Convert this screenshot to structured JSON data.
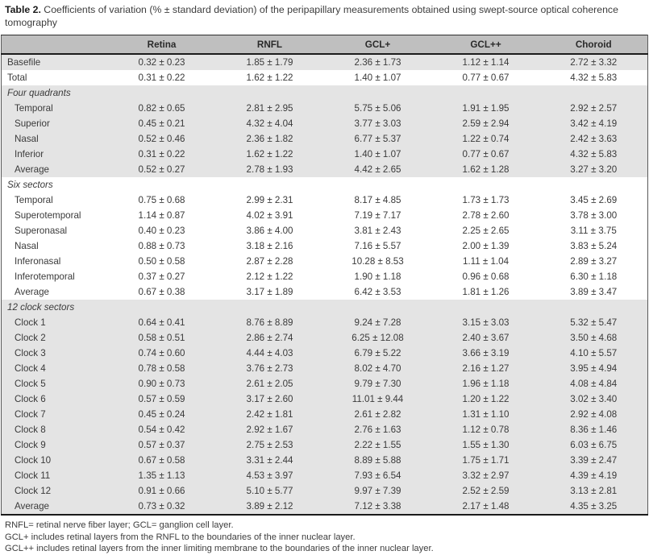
{
  "title": {
    "label": "Table 2.",
    "text": " Coefficients of variation (% ± standard deviation) of the peripapillary measurements obtained using swept-source optical coherence tomography"
  },
  "table": {
    "columns": [
      "",
      "Retina",
      "RNFL",
      "GCL+",
      "GCL++",
      "Choroid"
    ],
    "groups": [
      {
        "header": null,
        "rows": [
          {
            "label": "Basefile",
            "values": [
              "0.32 ± 0.23",
              "1.85 ± 1.79",
              "2.36 ± 1.73",
              "1.12 ± 1.14",
              "2.72 ± 3.32"
            ]
          }
        ]
      },
      {
        "header": null,
        "rows": [
          {
            "label": "Total",
            "values": [
              "0.31 ± 0.22",
              "1.62 ± 1.22",
              "1.40 ± 1.07",
              "0.77 ± 0.67",
              "4.32 ± 5.83"
            ]
          }
        ]
      },
      {
        "header": "Four quadrants",
        "rows": [
          {
            "label": "Temporal",
            "values": [
              "0.82 ± 0.65",
              "2.81 ± 2.95",
              "5.75 ± 5.06",
              "1.91 ± 1.95",
              "2.92 ± 2.57"
            ]
          },
          {
            "label": "Superior",
            "values": [
              "0.45 ± 0.21",
              "4.32 ± 4.04",
              "3.77 ± 3.03",
              "2.59 ± 2.94",
              "3.42 ± 4.19"
            ]
          },
          {
            "label": "Nasal",
            "values": [
              "0.52 ± 0.46",
              "2.36 ± 1.82",
              "6.77 ± 5.37",
              "1.22 ± 0.74",
              "2.42 ± 3.63"
            ]
          },
          {
            "label": "Inferior",
            "values": [
              "0.31 ± 0.22",
              "1.62 ± 1.22",
              "1.40 ± 1.07",
              "0.77 ± 0.67",
              "4.32 ± 5.83"
            ]
          },
          {
            "label": "Average",
            "values": [
              "0.52 ± 0.27",
              "2.78 ± 1.93",
              "4.42 ± 2.65",
              "1.62 ± 1.28",
              "3.27 ± 3.20"
            ]
          }
        ]
      },
      {
        "header": "Six sectors",
        "rows": [
          {
            "label": "Temporal",
            "values": [
              "0.75 ± 0.68",
              "2.99 ± 2.31",
              "8.17 ± 4.85",
              "1.73 ± 1.73",
              "3.45 ± 2.69"
            ]
          },
          {
            "label": "Superotemporal",
            "values": [
              "1.14 ± 0.87",
              "4.02 ± 3.91",
              "7.19 ± 7.17",
              "2.78 ± 2.60",
              "3.78 ± 3.00"
            ]
          },
          {
            "label": "Superonasal",
            "values": [
              "0.40 ± 0.23",
              "3.86 ± 4.00",
              "3.81 ± 2.43",
              "2.25 ± 2.65",
              "3.11 ± 3.75"
            ]
          },
          {
            "label": "Nasal",
            "values": [
              "0.88 ± 0.73",
              "3.18 ± 2.16",
              "7.16 ± 5.57",
              "2.00 ± 1.39",
              "3.83 ± 5.24"
            ]
          },
          {
            "label": "Inferonasal",
            "values": [
              "0.50 ± 0.58",
              "2.87 ± 2.28",
              "10.28 ± 8.53",
              "1.11 ± 1.04",
              "2.89 ± 3.27"
            ]
          },
          {
            "label": "Inferotemporal",
            "values": [
              "0.37 ± 0.27",
              "2.12 ± 1.22",
              "1.90 ± 1.18",
              "0.96 ± 0.68",
              "6.30 ± 1.18"
            ]
          },
          {
            "label": "Average",
            "values": [
              "0.67 ± 0.38",
              "3.17 ± 1.89",
              "6.42 ± 3.53",
              "1.81 ± 1.26",
              "3.89 ± 3.47"
            ]
          }
        ]
      },
      {
        "header": "12 clock sectors",
        "rows": [
          {
            "label": "Clock 1",
            "values": [
              "0.64 ± 0.41",
              "8.76 ± 8.89",
              "9.24 ± 7.28",
              "3.15 ± 3.03",
              "5.32 ± 5.47"
            ]
          },
          {
            "label": "Clock 2",
            "values": [
              "0.58 ± 0.51",
              "2.86 ± 2.74",
              "6.25 ± 12.08",
              "2.40 ± 3.67",
              "3.50 ± 4.68"
            ]
          },
          {
            "label": "Clock 3",
            "values": [
              "0.74 ± 0.60",
              "4.44 ± 4.03",
              "6.79 ± 5.22",
              "3.66 ± 3.19",
              "4.10 ± 5.57"
            ]
          },
          {
            "label": "Clock 4",
            "values": [
              "0.78 ± 0.58",
              "3.76 ± 2.73",
              "8.02 ± 4.70",
              "2.16 ± 1.27",
              "3.95 ± 4.94"
            ]
          },
          {
            "label": "Clock 5",
            "values": [
              "0.90 ± 0.73",
              "2.61 ± 2.05",
              "9.79 ± 7.30",
              "1.96 ± 1.18",
              "4.08 ± 4.84"
            ]
          },
          {
            "label": "Clock 6",
            "values": [
              "0.57 ± 0.59",
              "3.17 ± 2.60",
              "11.01 ± 9.44",
              "1.20 ± 1.22",
              "3.02 ± 3.40"
            ]
          },
          {
            "label": "Clock 7",
            "values": [
              "0.45 ± 0.24",
              "2.42 ± 1.81",
              "2.61 ± 2.82",
              "1.31 ± 1.10",
              "2.92 ± 4.08"
            ]
          },
          {
            "label": "Clock 8",
            "values": [
              "0.54 ± 0.42",
              "2.92 ± 1.67",
              "2.76 ± 1.63",
              "1.12 ± 0.78",
              "8.36 ± 1.46"
            ]
          },
          {
            "label": "Clock 9",
            "values": [
              "0.57 ± 0.37",
              "2.75 ± 2.53",
              "2.22 ± 1.55",
              "1.55 ± 1.30",
              "6.03 ± 6.75"
            ]
          },
          {
            "label": "Clock 10",
            "values": [
              "0.67 ± 0.58",
              "3.31 ± 2.44",
              "8.89 ± 5.88",
              "1.75 ± 1.71",
              "3.39 ± 2.47"
            ]
          },
          {
            "label": "Clock 11",
            "values": [
              "1.35 ± 1.13",
              "4.53 ± 3.97",
              "7.93 ± 6.54",
              "3.32 ± 2.97",
              "4.39 ± 4.19"
            ]
          },
          {
            "label": "Clock 12",
            "values": [
              "0.91 ± 0.66",
              "5.10 ± 5.77",
              "9.97 ± 7.39",
              "2.52 ± 2.59",
              "3.13 ± 2.81"
            ]
          },
          {
            "label": "Average",
            "values": [
              "0.73 ± 0.32",
              "3.89 ± 2.12",
              "7.12 ± 3.38",
              "2.17 ± 1.48",
              "4.35 ± 3.25"
            ]
          }
        ]
      }
    ]
  },
  "footnotes": [
    "RNFL= retinal nerve fiber layer; GCL= ganglion cell layer.",
    "GCL+ includes retinal layers from the RNFL to the boundaries of the inner nuclear layer.",
    "GCL++ includes retinal layers from the inner limiting membrane to the boundaries of the inner nuclear layer."
  ],
  "colors": {
    "header_bg": "#bfbfbf",
    "band_bg": "#e4e4e4",
    "text": "#3a3a3a"
  }
}
